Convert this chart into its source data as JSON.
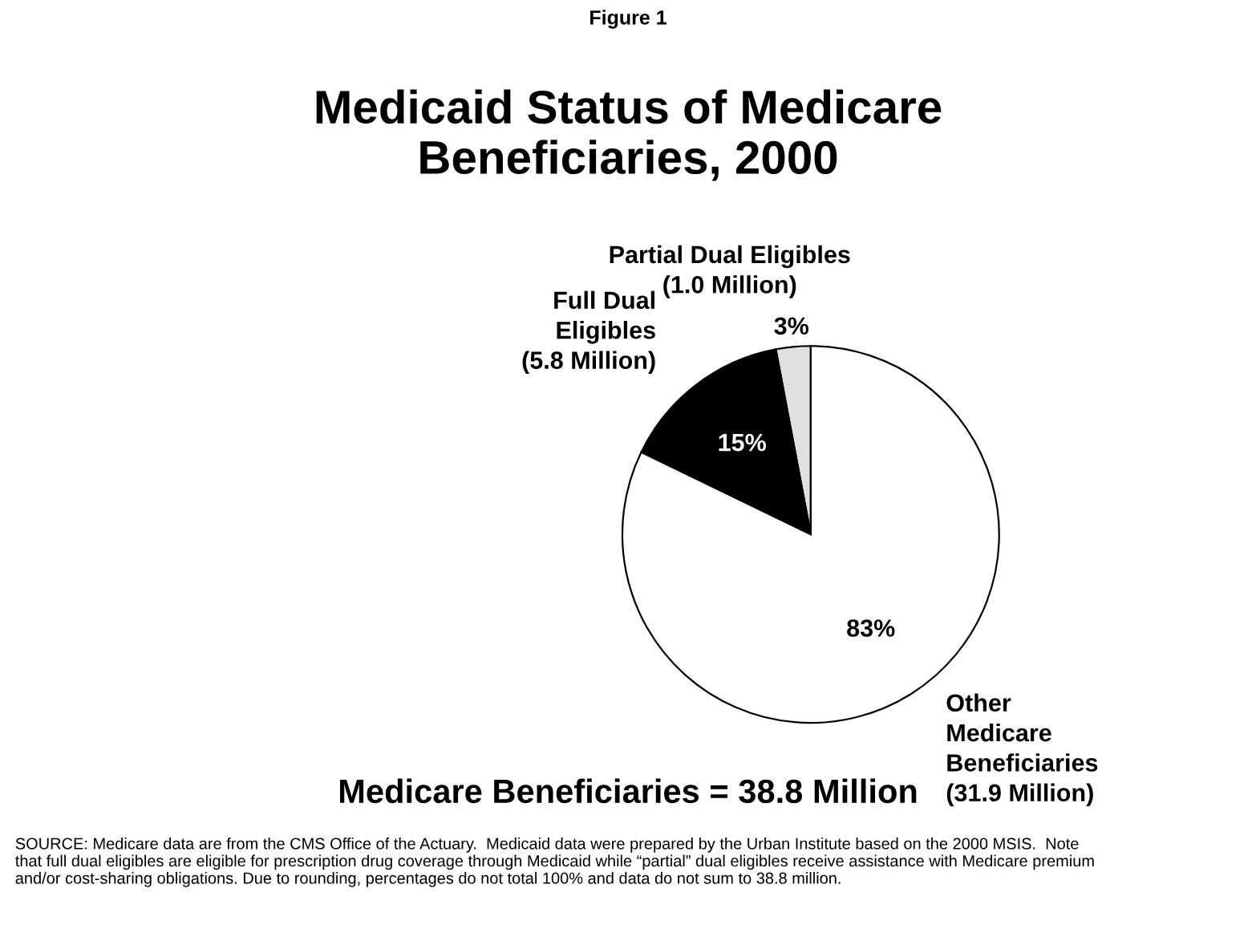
{
  "chart_data": {
    "type": "pie",
    "title": "Medicaid Status of Medicare\nBeneficiaries, 2000",
    "subtitle": "Figure 1",
    "categories": [
      "Partial Dual Eligibles\n(1.0 Million)",
      "Full Dual\nEligibles\n(5.8 Million)",
      "Other\nMedicare\nBeneficiaries\n(31.9 Million)"
    ],
    "values": [
      3,
      15,
      83
    ],
    "value_labels": [
      "3%",
      "15%",
      "83%"
    ],
    "colors": [
      "#e0e0e0",
      "#000000",
      "#ffffff"
    ],
    "annotations": [
      "Medicare Beneficiaries = 38.8 Million",
      "SOURCE: Medicare data are from the CMS Office of the Actuary.  Medicaid data were prepared by the Urban Institute based on the 2000 MSIS.  Note that full dual eligibles are eligible for prescription drug coverage through Medicaid while “partial” dual eligibles receive assistance with Medicare premium and/or cost-sharing obligations. Due to rounding, percentages do not total 100% and data do not sum to 38.8 million."
    ]
  }
}
